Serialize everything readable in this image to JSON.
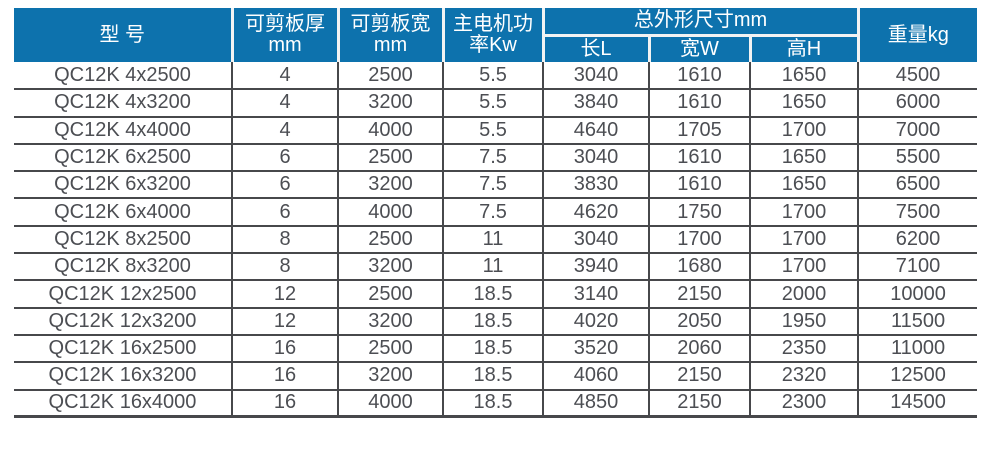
{
  "colors": {
    "header_bg": "#0d72ad",
    "header_text": "#ffffff",
    "header_divider": "#f2f3f3",
    "body_text": "#4c4e53",
    "grid_line": "#47484b"
  },
  "table": {
    "header": {
      "model": "型 号",
      "thickness_line1": "可剪板厚",
      "thickness_line2": "mm",
      "width_line1": "可剪板宽",
      "width_line2": "mm",
      "power_line1": "主电机功",
      "power_line2": "率Kw",
      "dims_group": "总外形尺寸mm",
      "dim_length": "长L",
      "dim_width": "宽W",
      "dim_height": "高H",
      "weight": "重量kg"
    },
    "rows": [
      [
        "QC12K 4x2500",
        "4",
        "2500",
        "5.5",
        "3040",
        "1610",
        "1650",
        "4500"
      ],
      [
        "QC12K 4x3200",
        "4",
        "3200",
        "5.5",
        "3840",
        "1610",
        "1650",
        "6000"
      ],
      [
        "QC12K 4x4000",
        "4",
        "4000",
        "5.5",
        "4640",
        "1705",
        "1700",
        "7000"
      ],
      [
        "QC12K 6x2500",
        "6",
        "2500",
        "7.5",
        "3040",
        "1610",
        "1650",
        "5500"
      ],
      [
        "QC12K 6x3200",
        "6",
        "3200",
        "7.5",
        "3830",
        "1610",
        "1650",
        "6500"
      ],
      [
        "QC12K 6x4000",
        "6",
        "4000",
        "7.5",
        "4620",
        "1750",
        "1700",
        "7500"
      ],
      [
        "QC12K 8x2500",
        "8",
        "2500",
        "11",
        "3040",
        "1700",
        "1700",
        "6200"
      ],
      [
        "QC12K 8x3200",
        "8",
        "3200",
        "11",
        "3940",
        "1680",
        "1700",
        "7100"
      ],
      [
        "QC12K 12x2500",
        "12",
        "2500",
        "18.5",
        "3140",
        "2150",
        "2000",
        "10000"
      ],
      [
        "QC12K 12x3200",
        "12",
        "3200",
        "18.5",
        "4020",
        "2050",
        "1950",
        "11500"
      ],
      [
        "QC12K 16x2500",
        "16",
        "2500",
        "18.5",
        "3520",
        "2060",
        "2350",
        "11000"
      ],
      [
        "QC12K 16x3200",
        "16",
        "3200",
        "18.5",
        "4060",
        "2150",
        "2320",
        "12500"
      ],
      [
        "QC12K 16x4000",
        "16",
        "4000",
        "18.5",
        "4850",
        "2150",
        "2300",
        "14500"
      ]
    ]
  }
}
